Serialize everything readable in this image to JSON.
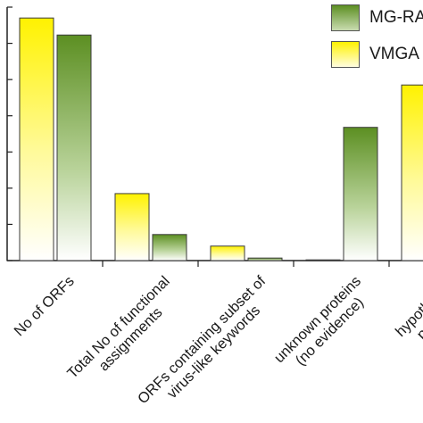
{
  "chart_data": {
    "type": "bar",
    "categories": [
      [
        "No of ORFs"
      ],
      [
        "Total No of functional",
        "assignments"
      ],
      [
        "ORFs containing subset of",
        "virus-like keywords"
      ],
      [
        "unknown proteins",
        "(no evidence)"
      ],
      [
        "hypothetical",
        "proteins"
      ]
    ],
    "series": [
      {
        "name": "VMGAP",
        "values": [
          670,
          185,
          40,
          2,
          485
        ],
        "gradient_top": "#fff200",
        "gradient_bottom": "#ffffff"
      },
      {
        "name": "MG-RAST",
        "values": [
          623,
          72,
          7,
          368,
          null
        ],
        "gradient_top": "#5c8f22",
        "gradient_bottom": "#ffffff"
      }
    ],
    "ylim": [
      0,
      700
    ],
    "ytick_step": 100,
    "legend_position": "top-right",
    "legend": [
      {
        "label": "MG-RA",
        "swatch": "mg-rast"
      },
      {
        "label": "VMGA",
        "swatch": "vmgap"
      }
    ]
  }
}
